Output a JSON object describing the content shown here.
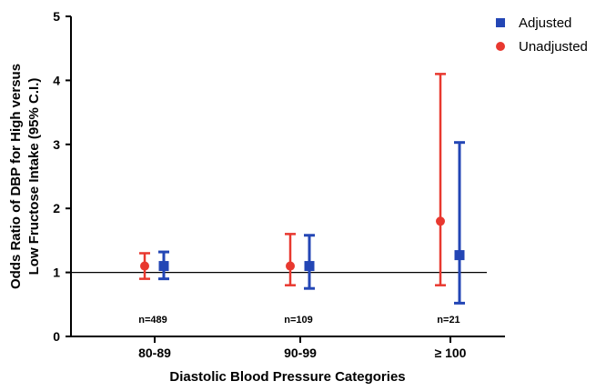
{
  "chart_data": {
    "type": "scatter",
    "categories": [
      "80-89",
      "90-99",
      "≥ 100"
    ],
    "xlabel": "Diastolic Blood Pressure Categories",
    "ylabel_line1": "Odds Ratio of DBP for High versus",
    "ylabel_line2": "Low Fructose Intake (95% C.I.)",
    "ylim": [
      0,
      5
    ],
    "yticks": [
      0,
      1,
      2,
      3,
      4,
      5
    ],
    "reference_line": 1,
    "legend_position": "top-right",
    "annotations": [
      "n=489",
      "n=109",
      "n=21"
    ],
    "series": [
      {
        "name": "Unadjusted",
        "color": "#e8382f",
        "marker": "circle",
        "values": [
          1.1,
          1.1,
          1.8
        ],
        "lower": [
          0.9,
          0.8,
          0.8
        ],
        "upper": [
          1.3,
          1.6,
          4.1
        ]
      },
      {
        "name": "Adjusted",
        "color": "#2346b5",
        "marker": "square",
        "values": [
          1.1,
          1.1,
          1.27
        ],
        "lower": [
          0.9,
          0.75,
          0.52
        ],
        "upper": [
          1.32,
          1.58,
          3.03
        ]
      }
    ]
  }
}
